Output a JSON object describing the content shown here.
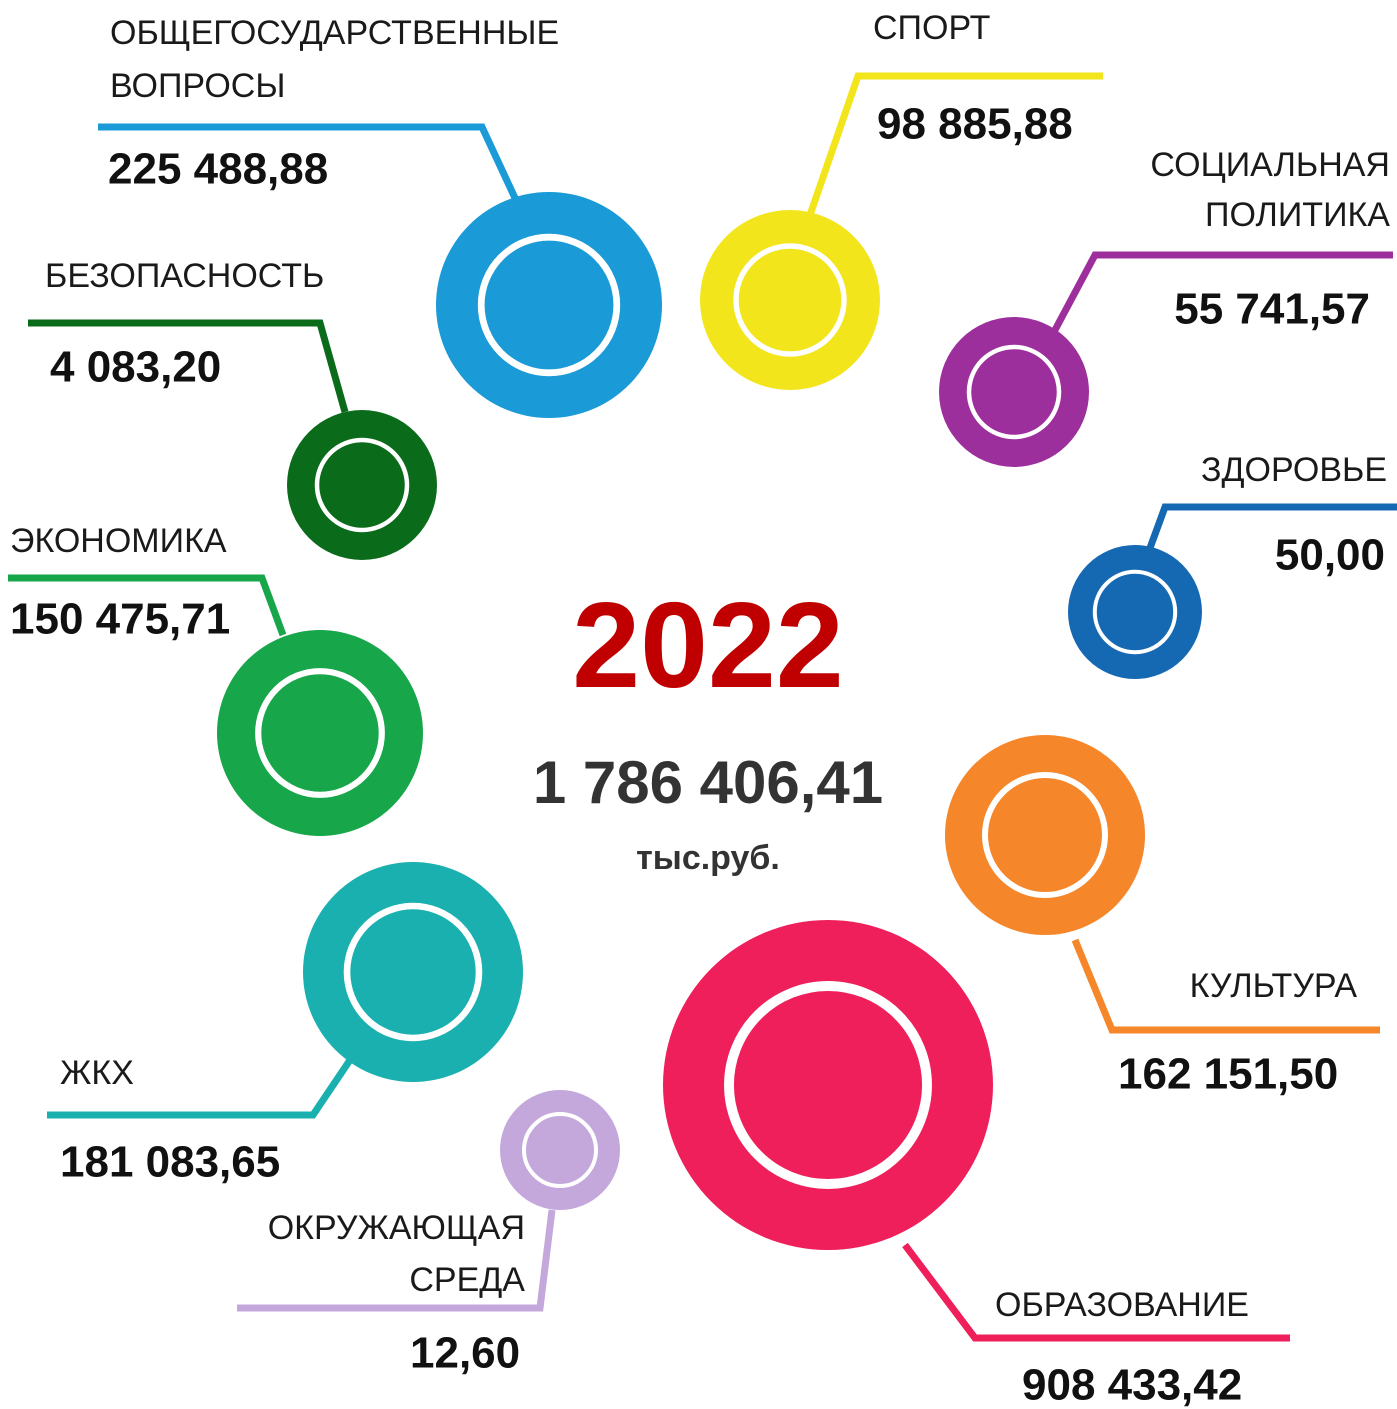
{
  "center": {
    "year": "2022",
    "total": "1 786 406,41",
    "unit": "тыс.руб."
  },
  "items": [
    {
      "label": [
        "ОБЩЕГОСУДАРСТВЕННЫЕ",
        "ВОПРОСЫ"
      ],
      "value": "225 488,88",
      "color": "#1a9ad6"
    },
    {
      "label": [
        "СПОРТ"
      ],
      "value": "98 885,88",
      "color": "#f2e51c"
    },
    {
      "label": [
        "СОЦИАЛЬНАЯ",
        "ПОЛИТИКА"
      ],
      "value": "55 741,57",
      "color": "#9c2f9c"
    },
    {
      "label": [
        "ЗДОРОВЬЕ"
      ],
      "value": "50,00",
      "color": "#1569b3"
    },
    {
      "label": [
        "КУЛЬТУРА"
      ],
      "value": "162 151,50",
      "color": "#f5862a"
    },
    {
      "label": [
        "ОБРАЗОВАНИЕ"
      ],
      "value": "908 433,42",
      "color": "#ee1f5a"
    },
    {
      "label": [
        "ОКРУЖАЮЩАЯ",
        "СРЕДА"
      ],
      "value": "12,60",
      "color": "#c4a8dc"
    },
    {
      "label": [
        "ЖКХ"
      ],
      "value": "181 083,65",
      "color": "#1ab0b0"
    },
    {
      "label": [
        "ЭКОНОМИКА"
      ],
      "value": "150 475,71",
      "color": "#17a64a"
    },
    {
      "label": [
        "БЕЗОПАСНОСТЬ"
      ],
      "value": "4 083,20",
      "color": "#0a6b1a"
    }
  ]
}
